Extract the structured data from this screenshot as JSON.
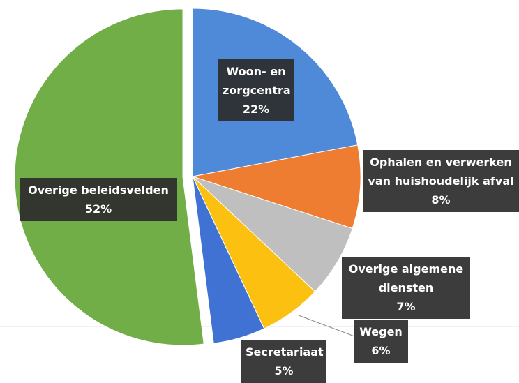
{
  "chart_data": {
    "type": "pie",
    "categories": [
      "Woon- en zorgcentra",
      "Ophalen en verwerken van huishoudelijk afval",
      "Overige algemene diensten",
      "Wegen",
      "Secretariaat",
      "Overige beleidsvelden"
    ],
    "values": [
      22,
      8,
      7,
      6,
      5,
      52
    ],
    "value_labels": [
      "22%",
      "8%",
      "7%",
      "6%",
      "5%",
      "52%"
    ],
    "colors": [
      "#4f8ad9",
      "#ee7d31",
      "#bfbfbf",
      "#fcc010",
      "#3f72d2",
      "#72ae48"
    ]
  }
}
